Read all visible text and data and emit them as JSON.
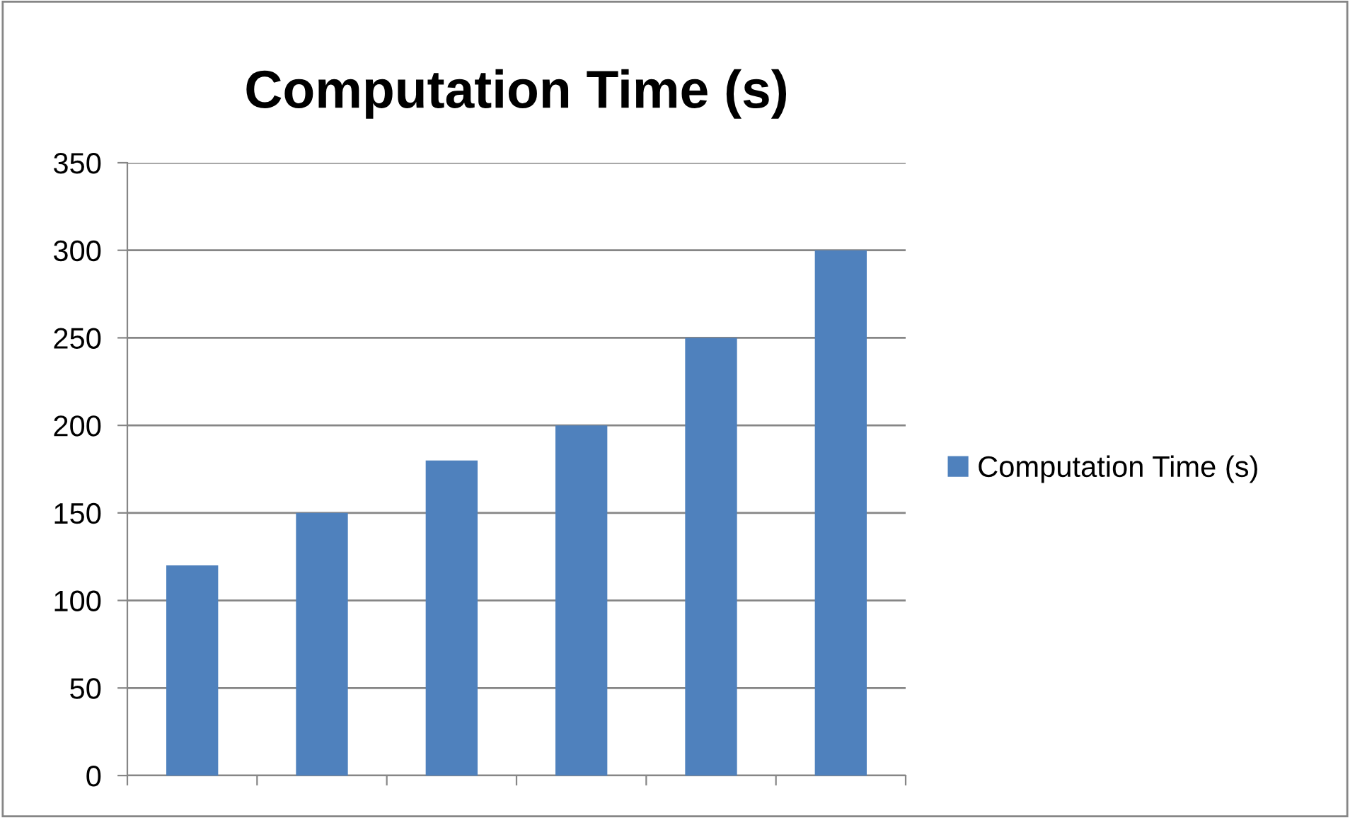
{
  "chart_data": {
    "type": "bar",
    "title": "Computation Time (s)",
    "categories": [
      null,
      null,
      null,
      null,
      null,
      null
    ],
    "series": [
      {
        "name": "Computation Time (s)",
        "color": "#4f81bd",
        "values": [
          120,
          150,
          180,
          200,
          250,
          300
        ]
      }
    ],
    "ylim": [
      0,
      350
    ],
    "yticks": [
      0,
      50,
      100,
      150,
      200,
      250,
      300,
      350
    ],
    "grid": "y",
    "legend": "right"
  }
}
